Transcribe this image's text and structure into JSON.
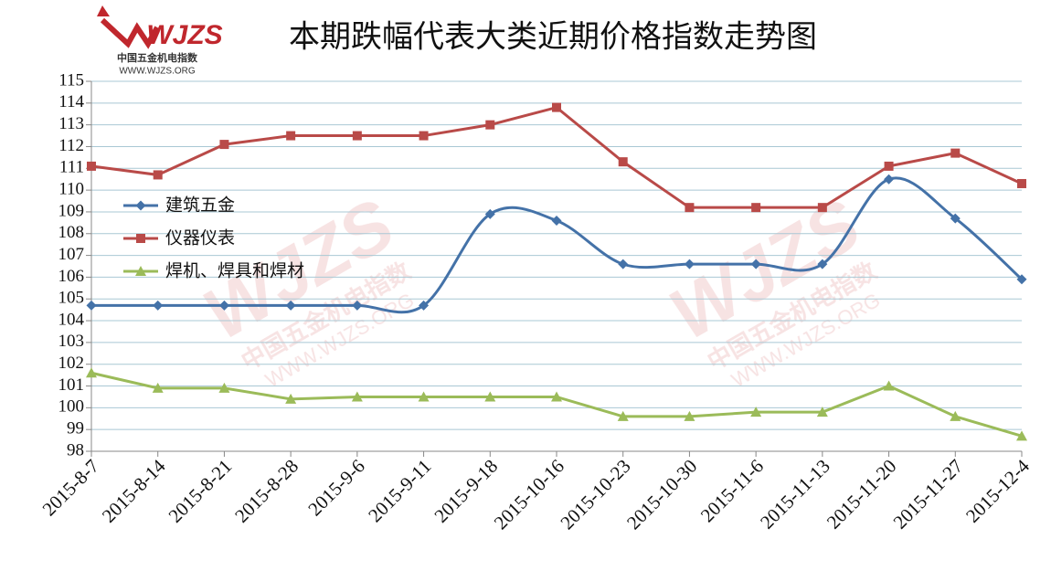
{
  "chart_data": {
    "type": "line",
    "title": "本期跌幅代表大类近期价格指数走势图",
    "logo": {
      "mark": "WJZS",
      "name": "中国五金机电指数",
      "url": "WWW.WJZS.ORG"
    },
    "categories": [
      "2015-8-7",
      "2015-8-14",
      "2015-8-21",
      "2015-8-28",
      "2015-9-6",
      "2015-9-11",
      "2015-9-18",
      "2015-10-16",
      "2015-10-23",
      "2015-10-30",
      "2015-11-6",
      "2015-11-13",
      "2015-11-20",
      "2015-11-27",
      "2015-12-4"
    ],
    "series": [
      {
        "name": "建筑五金",
        "color": "#4472a8",
        "marker": "diamond",
        "smooth": true,
        "values": [
          104.7,
          104.7,
          104.7,
          104.7,
          104.7,
          104.7,
          108.9,
          108.6,
          106.6,
          106.6,
          106.6,
          106.6,
          110.5,
          108.7,
          105.9
        ]
      },
      {
        "name": "仪器仪表",
        "color": "#b94a48",
        "marker": "square",
        "smooth": false,
        "values": [
          111.1,
          110.7,
          112.1,
          112.5,
          112.5,
          112.5,
          113.0,
          113.8,
          111.3,
          109.2,
          109.2,
          109.2,
          111.1,
          111.7,
          110.3
        ]
      },
      {
        "name": "焊机、焊具和焊材",
        "color": "#9bbb59",
        "marker": "triangle",
        "smooth": false,
        "values": [
          101.6,
          100.9,
          100.9,
          100.4,
          100.5,
          100.5,
          100.5,
          100.5,
          99.6,
          99.6,
          99.8,
          99.8,
          101.0,
          99.6,
          98.7
        ]
      }
    ],
    "ylim": [
      98,
      115
    ],
    "yticks": [
      98,
      99,
      100,
      101,
      102,
      103,
      104,
      105,
      106,
      107,
      108,
      109,
      110,
      111,
      112,
      113,
      114,
      115
    ],
    "grid": true,
    "legend": "left"
  }
}
